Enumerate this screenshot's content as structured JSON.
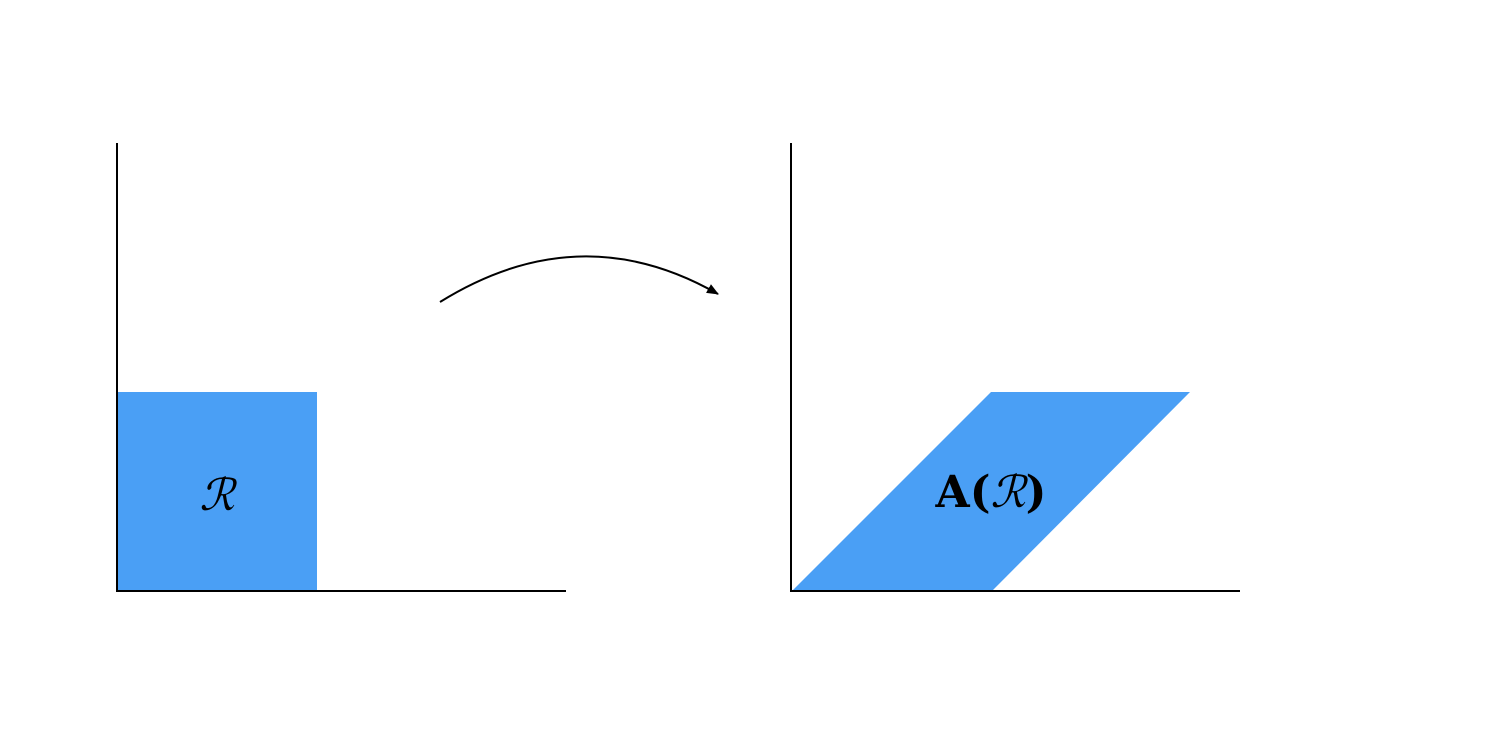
{
  "colors": {
    "region_fill": "#4a9ff5",
    "line": "#000000",
    "background": "#ffffff"
  },
  "left_plot": {
    "region_label": "ℛ"
  },
  "mapping_arrow": {
    "icon": "curved-arrow-icon"
  },
  "right_plot": {
    "label_prefix": "A",
    "label_open": "(",
    "label_region": "ℛ",
    "label_close": ")"
  }
}
